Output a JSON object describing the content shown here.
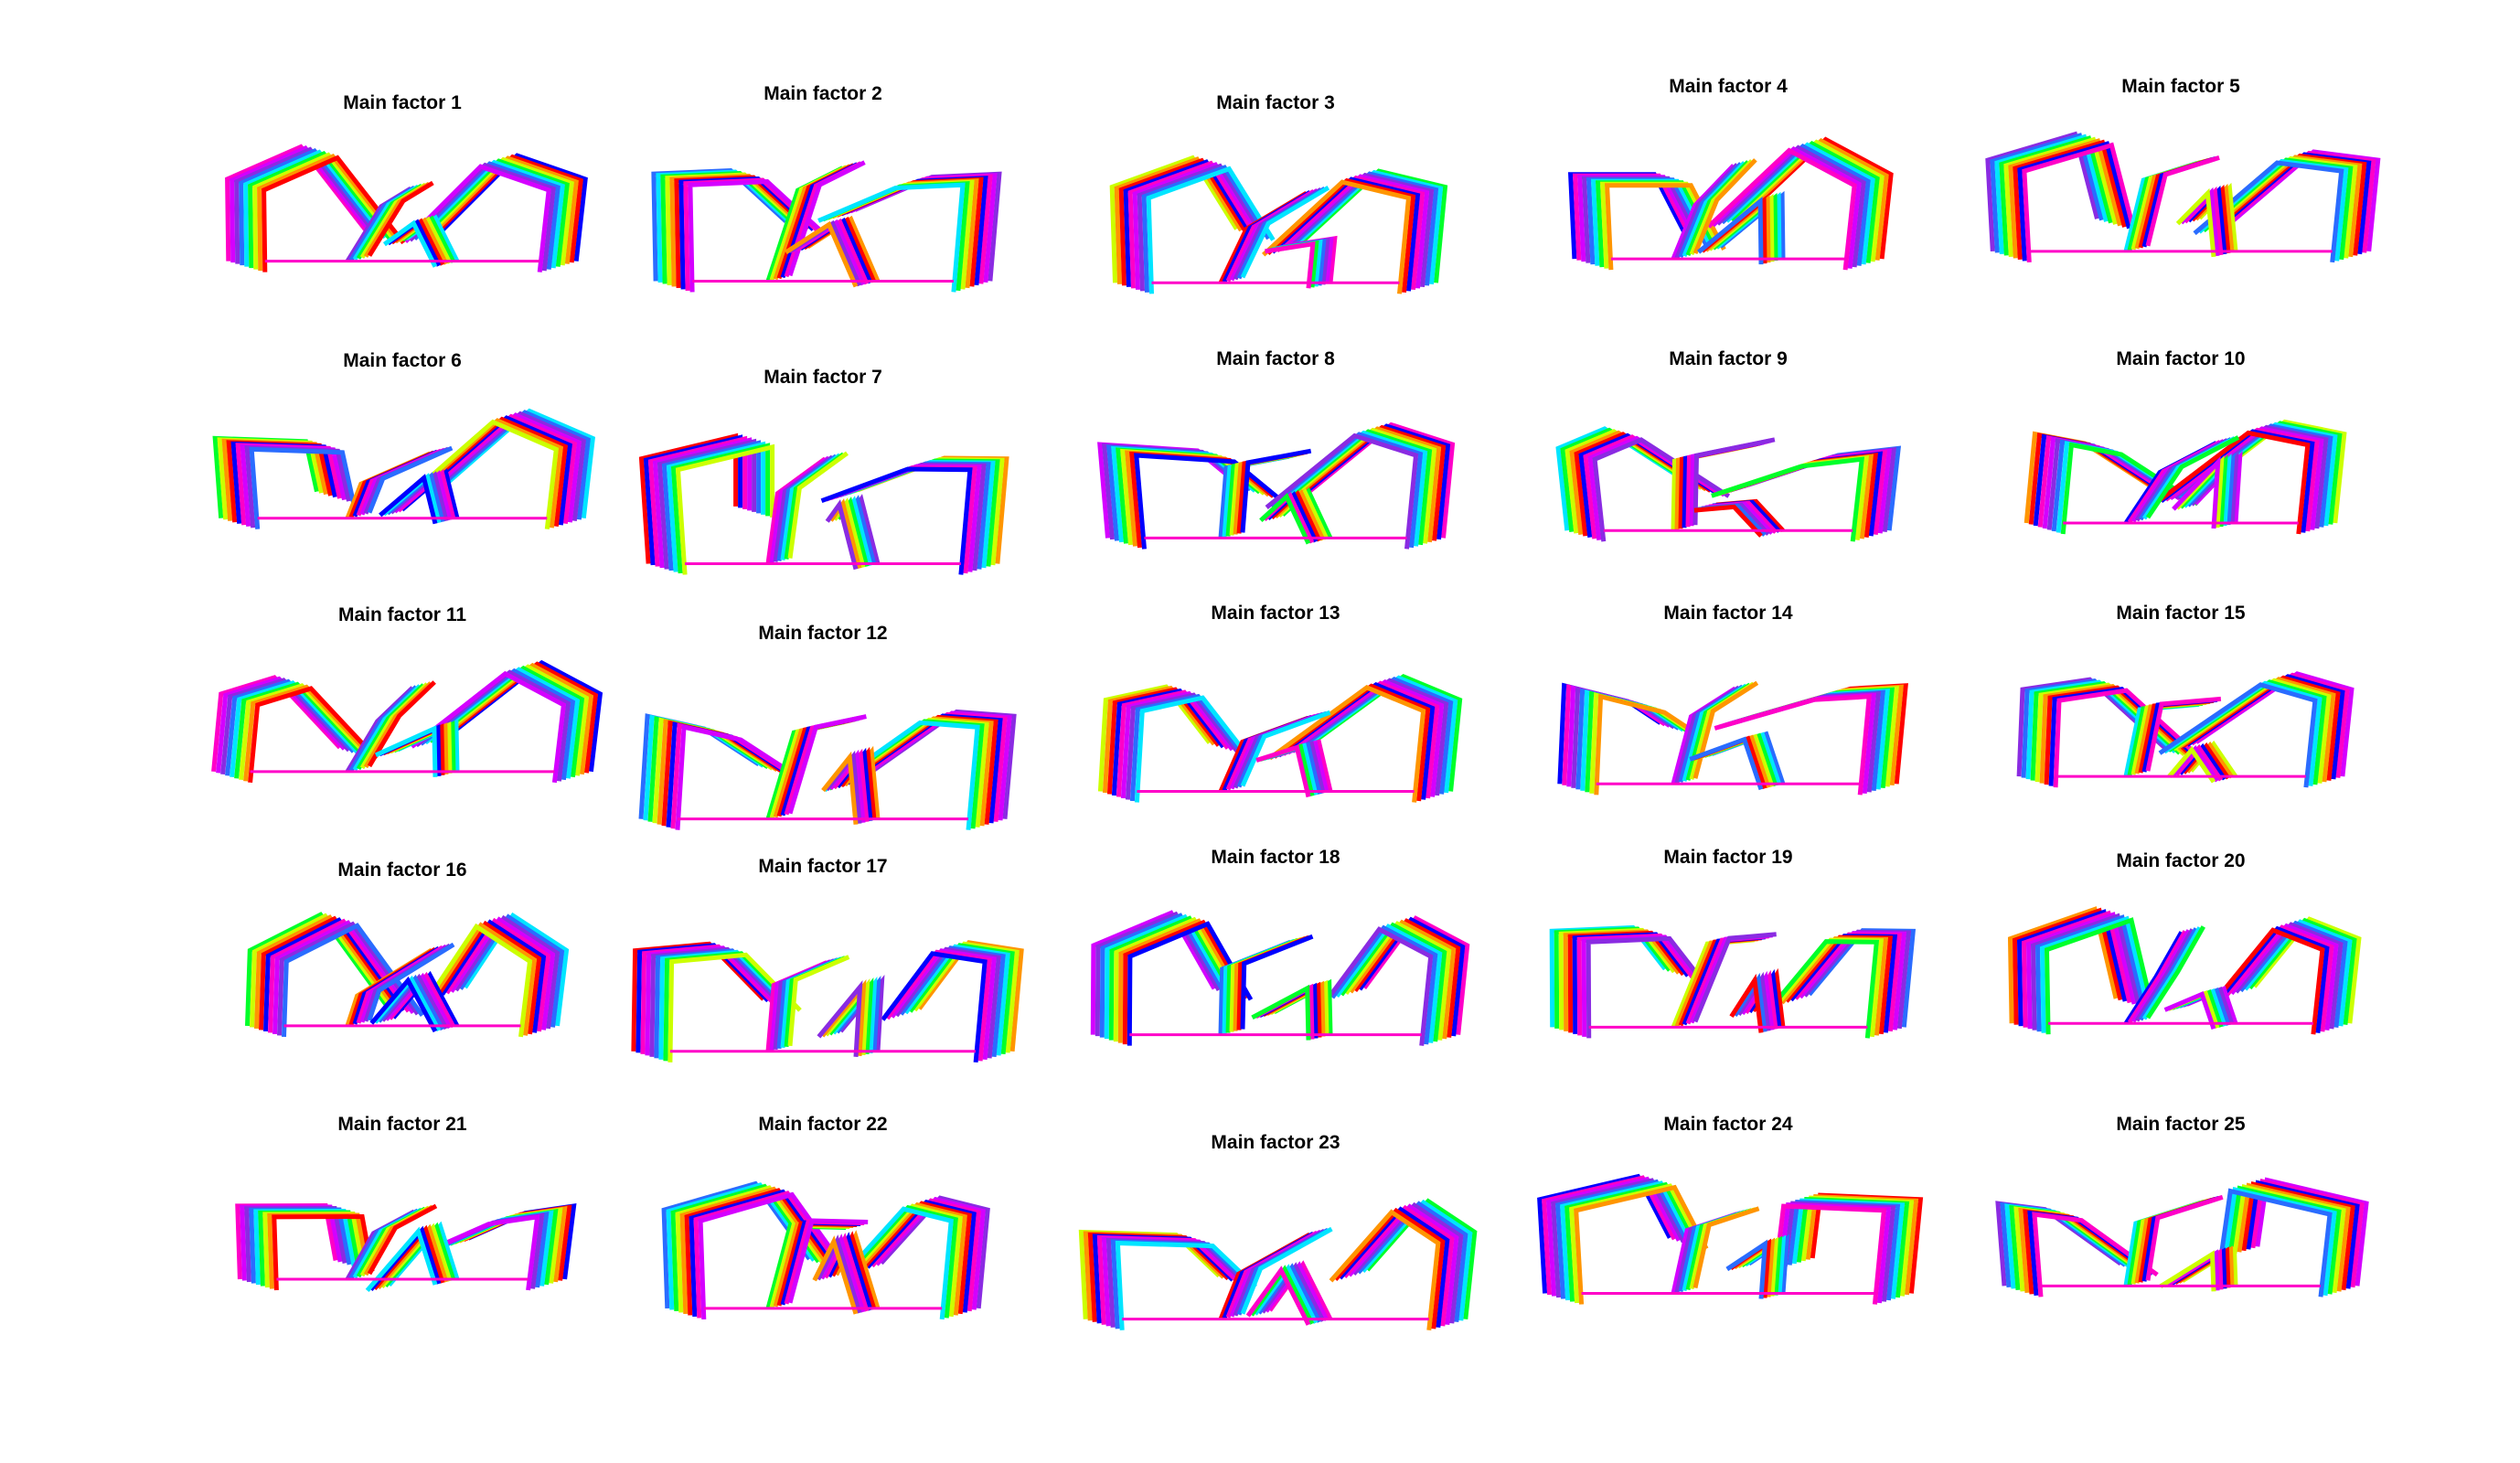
{
  "figure": {
    "panels": [
      {
        "title": "Main factor 1",
        "palette": [
          "#ff00c8",
          "#2a6cff",
          "#00e5ff",
          "#ffffff00"
        ]
      },
      {
        "title": "Main factor 2",
        "palette": [
          "#ff00c8",
          "#00e5ff",
          "#ccff00"
        ]
      },
      {
        "title": "Main factor 3",
        "palette": [
          "#ff00c8",
          "#2a6cff",
          "#00e5ff"
        ]
      },
      {
        "title": "Main factor 4",
        "palette": [
          "#ff00c8",
          "#ff9500",
          "#00e5ff"
        ]
      },
      {
        "title": "Main factor 5",
        "palette": [
          "#ff00c8",
          "#00ff2a",
          "#ff9500"
        ]
      },
      {
        "title": "Main factor 6",
        "palette": [
          "#ff00c8",
          "#ff9500",
          "#00e5ff"
        ]
      },
      {
        "title": "Main factor 7",
        "palette": [
          "#ff00c8",
          "#ff0000",
          "#00ff2a"
        ]
      },
      {
        "title": "Main factor 8",
        "palette": [
          "#ff00c8",
          "#ff0000",
          "#00e5ff"
        ]
      },
      {
        "title": "Main factor 9",
        "palette": [
          "#ff00c8",
          "#00ff2a",
          "#2a6cff"
        ]
      },
      {
        "title": "Main factor 10",
        "palette": [
          "#ff00c8",
          "#2a6cff",
          "#ff0000"
        ]
      },
      {
        "title": "Main factor 11",
        "palette": [
          "#ff00c8",
          "#ff9500",
          "#2a6cff"
        ]
      },
      {
        "title": "Main factor 12",
        "palette": [
          "#ff00c8",
          "#ff0000",
          "#00ff2a"
        ]
      },
      {
        "title": "Main factor 13",
        "palette": [
          "#ff00c8",
          "#ff9500",
          "#ccff00"
        ]
      },
      {
        "title": "Main factor 14",
        "palette": [
          "#ff00c8",
          "#00e5ff",
          "#00ff2a"
        ]
      },
      {
        "title": "Main factor 15",
        "palette": [
          "#ff00c8",
          "#ff0000",
          "#00e5ff"
        ]
      },
      {
        "title": "Main factor 16",
        "palette": [
          "#ff00c8",
          "#00e5ff",
          "#ccff00"
        ]
      },
      {
        "title": "Main factor 17",
        "palette": [
          "#ff00c8",
          "#ff0000",
          "#2a6cff"
        ]
      },
      {
        "title": "Main factor 18",
        "palette": [
          "#ff00c8",
          "#ff9500",
          "#00e5ff"
        ]
      },
      {
        "title": "Main factor 19",
        "palette": [
          "#ff00c8",
          "#ff0000",
          "#00ff2a"
        ]
      },
      {
        "title": "Main factor 20",
        "palette": [
          "#ff00c8",
          "#2a6cff",
          "#00e5ff"
        ]
      },
      {
        "title": "Main factor 21",
        "palette": [
          "#ff00c8",
          "#ccff00",
          "#2a6cff"
        ]
      },
      {
        "title": "Main factor 22",
        "palette": [
          "#ff00c8",
          "#00ff2a",
          "#ff0000"
        ]
      },
      {
        "title": "Main factor 23",
        "palette": [
          "#ff00c8",
          "#ff9500",
          "#00e5ff"
        ]
      },
      {
        "title": "Main factor 24",
        "palette": [
          "#ff00c8",
          "#2a6cff",
          "#00ff2a"
        ]
      },
      {
        "title": "Main factor 25",
        "palette": [
          "#ff00c8",
          "#00ff2a",
          "#ff9500"
        ]
      }
    ]
  }
}
